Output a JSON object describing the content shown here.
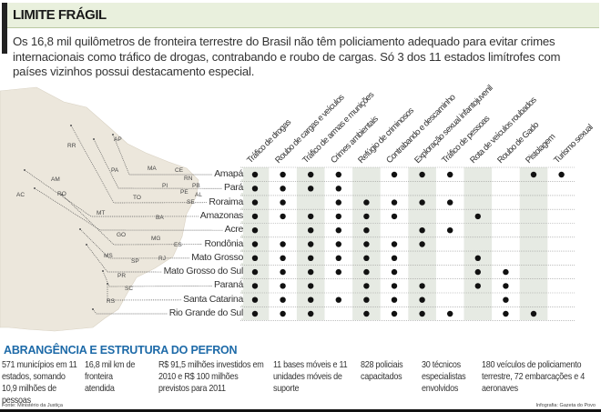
{
  "header": {
    "title": "LIMITE FRÁGIL",
    "intro": "Os 16,8 mil quilômetros de fronteira terrestre do Brasil não têm policiamento adequado para evitar crimes internacionais como tráfico de drogas, contrabando e roubo de cargas. Só 3 dos 11 estados limítrofes com países vizinhos possui destacamento especial."
  },
  "colors": {
    "band": "#e9f0dd",
    "shade": "#e6eae3",
    "map": "#ece7dc",
    "section_title": "#1d6aa8"
  },
  "crimes": [
    "Tráfico de drogas",
    "Roubo de cargas e veículos",
    "Tráfico de armas e munições",
    "Crimes ambientais",
    "Refúgio de criminosos",
    "Contrabando e descaminho",
    "Exploração sexual infantojuvenil",
    "Tráfico de pessoas",
    "Rota de veículos roubados",
    "Roubo de Gado",
    "Pistolagem",
    "Turismo sexual"
  ],
  "states": [
    {
      "name": "Amapá",
      "crimes": [
        1,
        1,
        1,
        1,
        0,
        1,
        1,
        1,
        0,
        0,
        1,
        1
      ]
    },
    {
      "name": "Pará",
      "crimes": [
        1,
        1,
        1,
        1,
        0,
        0,
        0,
        0,
        0,
        0,
        0,
        0
      ]
    },
    {
      "name": "Roraima",
      "crimes": [
        1,
        1,
        0,
        1,
        1,
        1,
        1,
        1,
        0,
        0,
        0,
        0
      ]
    },
    {
      "name": "Amazonas",
      "crimes": [
        1,
        1,
        1,
        1,
        1,
        1,
        0,
        0,
        1,
        0,
        0,
        0
      ]
    },
    {
      "name": "Acre",
      "crimes": [
        1,
        0,
        1,
        1,
        1,
        0,
        1,
        1,
        0,
        0,
        0,
        0
      ]
    },
    {
      "name": "Rondônia",
      "crimes": [
        1,
        1,
        1,
        1,
        1,
        1,
        1,
        0,
        0,
        0,
        0,
        0
      ]
    },
    {
      "name": "Mato Grosso",
      "crimes": [
        1,
        1,
        1,
        1,
        1,
        1,
        0,
        0,
        1,
        0,
        0,
        0
      ]
    },
    {
      "name": "Mato Grosso do Sul",
      "crimes": [
        1,
        1,
        1,
        1,
        1,
        1,
        0,
        0,
        1,
        1,
        0,
        0
      ]
    },
    {
      "name": "Paraná",
      "crimes": [
        1,
        1,
        1,
        0,
        1,
        1,
        1,
        0,
        1,
        1,
        0,
        0
      ]
    },
    {
      "name": "Santa Catarina",
      "crimes": [
        1,
        1,
        1,
        1,
        1,
        1,
        1,
        0,
        0,
        1,
        0,
        0
      ]
    },
    {
      "name": "Rio Grande do Sul",
      "crimes": [
        1,
        1,
        1,
        0,
        1,
        1,
        1,
        1,
        0,
        1,
        1,
        0
      ]
    }
  ],
  "map_labels": [
    "RR",
    "AP",
    "PA",
    "MA",
    "CE",
    "RN",
    "PI",
    "PB",
    "PE",
    "AL",
    "SE",
    "TO",
    "AM",
    "AC",
    "RO",
    "MT",
    "BA",
    "GO",
    "MG",
    "ES",
    "MS",
    "SP",
    "RJ",
    "PR",
    "SC",
    "RS"
  ],
  "footer": {
    "section_title": "ABRANGÊNCIA E ESTRUTURA DO PEFRON",
    "facts": [
      "571 municípios em 11 estados, somando 10,9 milhões de pessoas",
      "16,8 mil km de fronteira atendida",
      "R$ 91,5 milhões investidos em 2010 e R$ 100 milhões previstos para 2011",
      "11 bases móveis e 11 unidades móveis de suporte",
      "828 policiais capacitados",
      "30 técnicos especialistas envolvidos",
      "180 veículos de policiamento terrestre, 72 embarcações e 4 aeronaves"
    ],
    "source": "Fonte: Ministério da Justiça",
    "credit": "Infografia: Gazeta do Povo"
  }
}
